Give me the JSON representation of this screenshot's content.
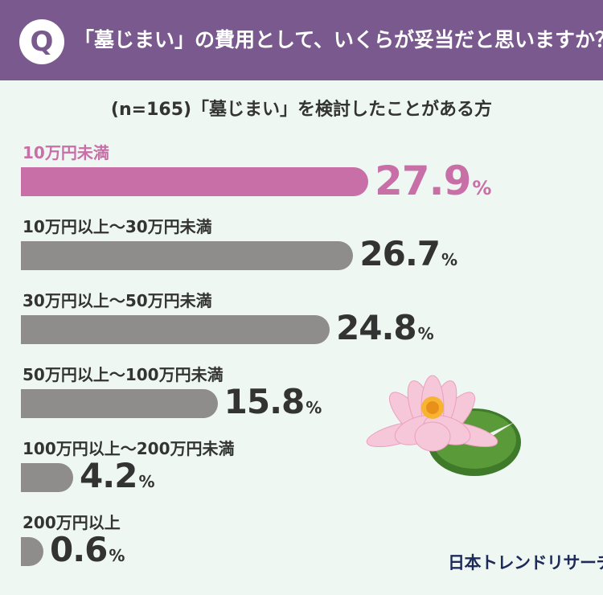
{
  "header": {
    "q_badge": "Q",
    "question": "「墓じまい」の費用として、いくらが妥当だと思いますか？"
  },
  "subtitle": "(n=165)「墓じまい」を検討したことがある方",
  "logo": "日本トレンドリサーチ",
  "colors": {
    "header": "#7a5a8e",
    "highlight": "#c96fa8",
    "bar": "#8f8c8c",
    "background": "#eef7f1"
  },
  "chart_data": {
    "type": "bar",
    "orientation": "horizontal",
    "unit": "%",
    "categories": [
      "10万円未満",
      "10万円以上～30万円未満",
      "30万円以上～50万円未満",
      "50万円以上～100万円未満",
      "100万円以上～200万円未満",
      "200万円以上"
    ],
    "values": [
      27.9,
      26.7,
      24.8,
      15.8,
      4.2,
      0.6
    ],
    "value_labels": [
      "27.9",
      "26.7",
      "24.8",
      "15.8",
      "4.2",
      "0.6"
    ],
    "highlight_index": 0,
    "xlim": [
      0,
      27.9
    ]
  }
}
